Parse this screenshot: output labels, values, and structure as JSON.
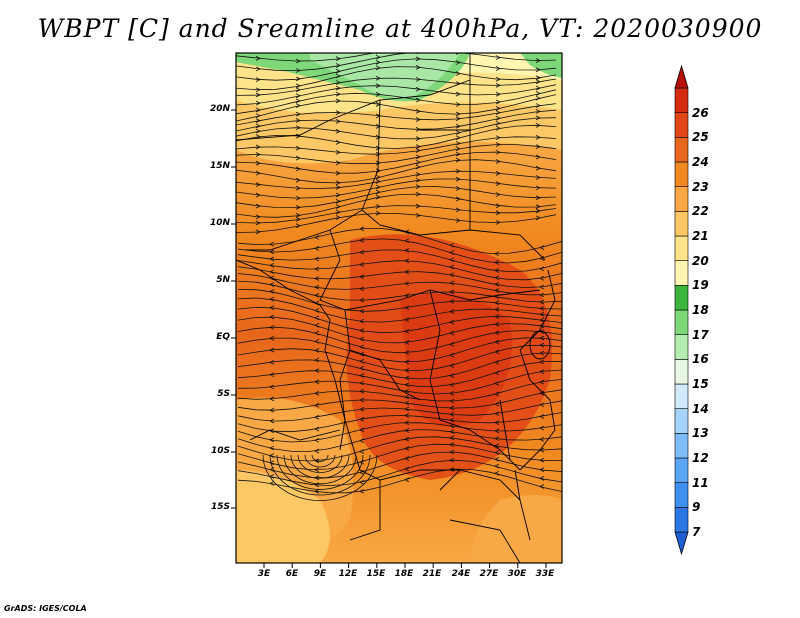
{
  "title": "WBPT [C] and Sreamline at 400hPa, VT: 2020030900",
  "footer": "GrADS: IGES/COLA",
  "map": {
    "lat_labels": [
      "20N",
      "15N",
      "10N",
      "5N",
      "EQ",
      "5S",
      "10S",
      "15S"
    ],
    "lon_labels": [
      "3E",
      "6E",
      "9E",
      "12E",
      "15E",
      "18E",
      "21E",
      "24E",
      "27E",
      "30E",
      "33E"
    ]
  },
  "colorbar": {
    "levels": [
      "7",
      "9",
      "11",
      "12",
      "13",
      "14",
      "15",
      "16",
      "17",
      "18",
      "19",
      "20",
      "21",
      "22",
      "23",
      "24",
      "25",
      "26"
    ],
    "colors": [
      "#1f5fd6",
      "#2b78e4",
      "#3f8fee",
      "#5aa5f4",
      "#7dbcf7",
      "#a6d3fa",
      "#d2ebfc",
      "#e8f7e4",
      "#b4ebaf",
      "#7ed87a",
      "#3cb53c",
      "#fff5b0",
      "#fde48a",
      "#fbc865",
      "#f8a844",
      "#f08a20",
      "#e8661c",
      "#e04616",
      "#d32a10",
      "#b81008"
    ]
  }
}
